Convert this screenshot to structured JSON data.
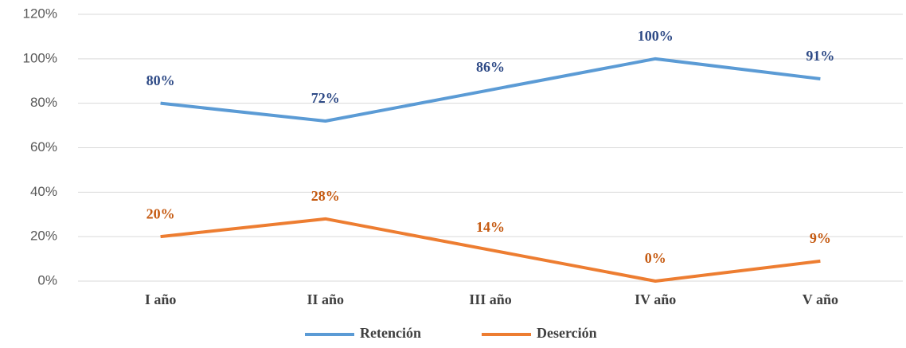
{
  "chart_data": {
    "type": "line",
    "categories": [
      "I año",
      "II año",
      "III año",
      "IV año",
      "V año"
    ],
    "series": [
      {
        "name": "Retención",
        "color": "#5b9bd5",
        "label_color": "#2e4a86",
        "values": [
          80,
          72,
          86,
          100,
          91
        ],
        "value_labels": [
          "80%",
          "72%",
          "86%",
          "100%",
          "91%"
        ]
      },
      {
        "name": "Deserción",
        "color": "#ed7d31",
        "label_color": "#c55a11",
        "values": [
          20,
          28,
          14,
          0,
          9
        ],
        "value_labels": [
          "20%",
          "28%",
          "14%",
          "0%",
          "9%"
        ]
      }
    ],
    "ylim": [
      0,
      120
    ],
    "yticks": [
      {
        "value": 0,
        "label": "0%"
      },
      {
        "value": 20,
        "label": "20%"
      },
      {
        "value": 40,
        "label": "40%"
      },
      {
        "value": 60,
        "label": "60%"
      },
      {
        "value": 80,
        "label": "80%"
      },
      {
        "value": 100,
        "label": "100%"
      },
      {
        "value": 120,
        "label": "120%"
      }
    ],
    "grid": true,
    "legend": "bottom"
  }
}
